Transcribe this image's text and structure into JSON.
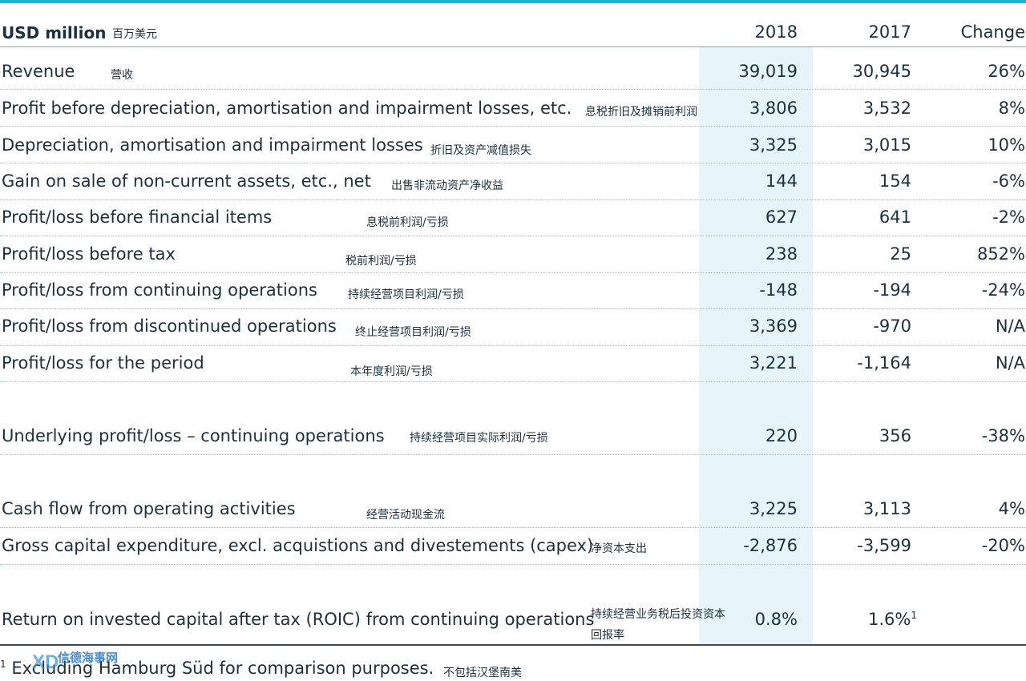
{
  "header": {
    "label": "USD million",
    "label_cn": "百万美元",
    "col_2018": "2018",
    "col_2017": "2017",
    "col_change": "Change"
  },
  "rows": [
    {
      "label": "Revenue",
      "cn": "营收",
      "v2018": "39,019",
      "v2017": "30,945",
      "change": "26%"
    },
    {
      "label": "Profit before depreciation, amortisation and impairment losses, etc.",
      "cn": "息税折旧及摊销前利润",
      "v2018": "3,806",
      "v2017": "3,532",
      "change": "8%"
    },
    {
      "label": "Depreciation, amortisation and impairment losses",
      "cn": "折旧及资产减值损失",
      "v2018": "3,325",
      "v2017": "3,015",
      "change": "10%"
    },
    {
      "label": "Gain on sale of non-current assets, etc., net",
      "cn": "出售非流动资产净收益",
      "v2018": "144",
      "v2017": "154",
      "change": "-6%"
    },
    {
      "label": "Profit/loss before financial items",
      "cn": "息税前利润/亏损",
      "v2018": "627",
      "v2017": "641",
      "change": "-2%"
    },
    {
      "label": "Profit/loss before tax",
      "cn": "税前利润/亏损",
      "v2018": "238",
      "v2017": "25",
      "change": "852%"
    },
    {
      "label": "Profit/loss from continuing operations",
      "cn": "持续经营项目利润/亏损",
      "v2018": "-148",
      "v2017": "-194",
      "change": "-24%"
    },
    {
      "label": "Profit/loss from discontinued operations",
      "cn": "终止经营项目利润/亏损",
      "v2018": "3,369",
      "v2017": "-970",
      "change": "N/A"
    },
    {
      "label": "Profit/loss for the period",
      "cn": "本年度利润/亏损",
      "v2018": "3,221",
      "v2017": "-1,164",
      "change": "N/A"
    },
    {
      "label": "Underlying profit/loss – continuing operations",
      "cn": "持续经营项目实际利润/亏损",
      "v2018": "220",
      "v2017": "356",
      "change": "-38%"
    },
    {
      "label": "Cash flow from operating activities",
      "cn": "经营活动现金流",
      "v2018": "3,225",
      "v2017": "3,113",
      "change": "4%"
    },
    {
      "label": "Gross capital expenditure, excl. acquistions and divestements (capex)",
      "cn": "净资本支出",
      "v2018": "-2,876",
      "v2017": "-3,599",
      "change": "-20%"
    },
    {
      "label": "Return on invested capital after tax (ROIC) from continuing operations",
      "cn": "持续经营业务税后投资资本",
      "cn2": "回报率",
      "v2018": "0.8%",
      "v2017": "1.6%",
      "v2017_sup": "1",
      "change": ""
    }
  ],
  "footnote": {
    "mark": "1",
    "text": "Excluding Hamburg Süd for comparison purposes.",
    "cn": "不包括汉堡南美"
  },
  "watermark": {
    "text": "信德海事网",
    "icon": "xd-logo-icon"
  },
  "colors": {
    "accent_bar": "#18b4d8",
    "highlight_column": "#e6f5fa",
    "dotted_rule": "#7cc9de"
  }
}
